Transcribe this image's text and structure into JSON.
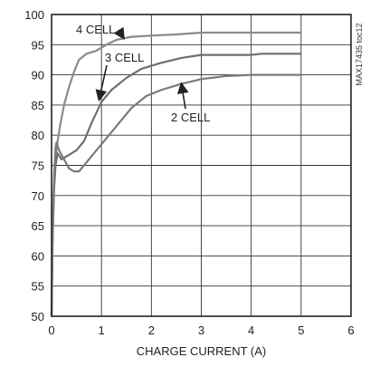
{
  "chart_data": {
    "type": "line",
    "xlabel": "CHARGE CURRENT (A)",
    "ylabel": "",
    "xlim": [
      0,
      6
    ],
    "ylim": [
      50,
      100
    ],
    "xticks": [
      0,
      1,
      2,
      3,
      4,
      5,
      6
    ],
    "yticks": [
      50,
      55,
      60,
      65,
      70,
      75,
      80,
      85,
      90,
      95,
      100
    ],
    "grid": true,
    "side_code": "MAX17435 toc12",
    "series": [
      {
        "name": "4 CELL",
        "color": "#8a8a8a",
        "points": [
          [
            0,
            50
          ],
          [
            0.02,
            62
          ],
          [
            0.05,
            72
          ],
          [
            0.08,
            76
          ],
          [
            0.12,
            79
          ],
          [
            0.18,
            82
          ],
          [
            0.25,
            85
          ],
          [
            0.35,
            88
          ],
          [
            0.45,
            90.5
          ],
          [
            0.55,
            92.5
          ],
          [
            0.7,
            93.5
          ],
          [
            0.9,
            94
          ],
          [
            1.1,
            95
          ],
          [
            1.3,
            95.8
          ],
          [
            1.6,
            96.3
          ],
          [
            2.0,
            96.5
          ],
          [
            2.5,
            96.7
          ],
          [
            3.0,
            97
          ],
          [
            4.0,
            97
          ],
          [
            5.0,
            97
          ]
        ]
      },
      {
        "name": "3 CELL",
        "color": "#6e6e6e",
        "points": [
          [
            0,
            50
          ],
          [
            0.02,
            63
          ],
          [
            0.05,
            71
          ],
          [
            0.08,
            75
          ],
          [
            0.12,
            77
          ],
          [
            0.2,
            76
          ],
          [
            0.3,
            76.5
          ],
          [
            0.5,
            77.5
          ],
          [
            0.65,
            79
          ],
          [
            0.8,
            82
          ],
          [
            1.0,
            85.5
          ],
          [
            1.2,
            87.5
          ],
          [
            1.5,
            89.5
          ],
          [
            1.8,
            91
          ],
          [
            2.2,
            92
          ],
          [
            2.6,
            92.8
          ],
          [
            3.0,
            93.3
          ],
          [
            4.0,
            93.3
          ],
          [
            4.2,
            93.5
          ],
          [
            5.0,
            93.5
          ]
        ]
      },
      {
        "name": "2 CELL",
        "color": "#7a7a7a",
        "points": [
          [
            0,
            50
          ],
          [
            0.02,
            64
          ],
          [
            0.05,
            73
          ],
          [
            0.08,
            78
          ],
          [
            0.1,
            78.8
          ],
          [
            0.15,
            77.5
          ],
          [
            0.25,
            76
          ],
          [
            0.35,
            74.5
          ],
          [
            0.45,
            74
          ],
          [
            0.55,
            74
          ],
          [
            0.7,
            75.5
          ],
          [
            0.9,
            77.5
          ],
          [
            1.1,
            79.5
          ],
          [
            1.3,
            81.5
          ],
          [
            1.6,
            84.5
          ],
          [
            1.9,
            86.5
          ],
          [
            2.2,
            87.5
          ],
          [
            2.6,
            88.5
          ],
          [
            3.0,
            89.3
          ],
          [
            3.5,
            89.8
          ],
          [
            4.0,
            90
          ],
          [
            5.0,
            90
          ]
        ]
      }
    ]
  }
}
